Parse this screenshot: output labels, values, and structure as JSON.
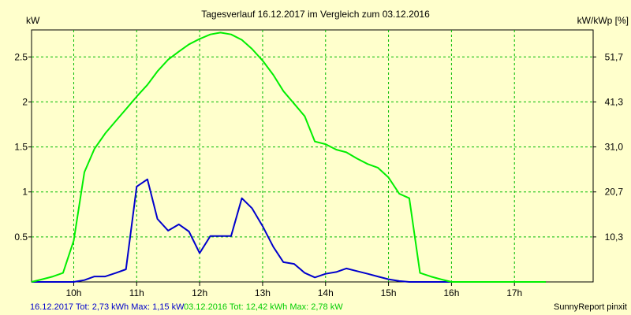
{
  "chart_data": {
    "type": "line",
    "title": "Tagesverlauf 16.12.2017 im Vergleich zum 03.12.2016",
    "ylabel_left": "kW",
    "ylabel_right": "kW/kWp [%]",
    "x_ticks": [
      "10h",
      "11h",
      "12h",
      "13h",
      "14h",
      "15h",
      "16h",
      "17h"
    ],
    "x_tick_hours": [
      10,
      11,
      12,
      13,
      14,
      15,
      16,
      17
    ],
    "xlim": [
      9.33,
      18.25
    ],
    "ylim": [
      0,
      2.8
    ],
    "y_ticks": [
      0.5,
      1,
      1.5,
      2,
      2.5
    ],
    "y_tick_labels": [
      "0.5",
      "1",
      "1.5",
      "2",
      "2.5"
    ],
    "y2_ticks": [
      0.5,
      1,
      1.5,
      2,
      2.5
    ],
    "y2_tick_labels": [
      "10,3",
      "20,7",
      "31,0",
      "41,3",
      "51,7"
    ],
    "grid": true,
    "series": [
      {
        "name": "16.12.2017",
        "color": "#0000cc",
        "x": [
          9.33,
          9.5,
          9.67,
          9.83,
          10.0,
          10.17,
          10.33,
          10.5,
          10.67,
          10.83,
          11.0,
          11.17,
          11.33,
          11.5,
          11.67,
          11.83,
          12.0,
          12.17,
          12.33,
          12.5,
          12.67,
          12.83,
          13.0,
          13.17,
          13.33,
          13.5,
          13.67,
          13.83,
          14.0,
          14.17,
          14.33,
          14.5,
          14.67,
          14.83,
          15.0,
          15.17,
          15.33,
          15.5,
          15.67,
          15.83,
          16.0,
          16.17,
          16.33,
          16.5,
          16.67,
          16.83,
          17.0,
          17.17,
          17.33,
          17.5
        ],
        "values": [
          0,
          0,
          0,
          0,
          0,
          0.02,
          0.06,
          0.06,
          0.1,
          0.14,
          1.06,
          1.14,
          0.7,
          0.57,
          0.64,
          0.56,
          0.32,
          0.51,
          0.51,
          0.51,
          0.93,
          0.82,
          0.62,
          0.39,
          0.22,
          0.2,
          0.1,
          0.05,
          0.09,
          0.11,
          0.15,
          0.12,
          0.09,
          0.06,
          0.03,
          0.01,
          0,
          0,
          0,
          0,
          0,
          0,
          0,
          0,
          0,
          0,
          0,
          0,
          0,
          0
        ]
      },
      {
        "name": "03.12.2016",
        "color": "#00ee00",
        "x": [
          9.33,
          9.5,
          9.67,
          9.83,
          10.0,
          10.17,
          10.33,
          10.5,
          10.67,
          10.83,
          11.0,
          11.17,
          11.33,
          11.5,
          11.67,
          11.83,
          12.0,
          12.17,
          12.33,
          12.5,
          12.67,
          12.83,
          13.0,
          13.17,
          13.33,
          13.5,
          13.67,
          13.83,
          14.0,
          14.17,
          14.33,
          14.5,
          14.67,
          14.83,
          15.0,
          15.17,
          15.33,
          15.5,
          15.67,
          15.83,
          16.0,
          16.17,
          16.33,
          16.5,
          16.67,
          16.83,
          17.0,
          17.17,
          17.33,
          17.5
        ],
        "values": [
          0,
          0.03,
          0.06,
          0.1,
          0.46,
          1.22,
          1.48,
          1.65,
          1.79,
          1.92,
          2.06,
          2.19,
          2.34,
          2.47,
          2.56,
          2.64,
          2.7,
          2.75,
          2.77,
          2.75,
          2.69,
          2.59,
          2.46,
          2.3,
          2.12,
          1.98,
          1.84,
          1.56,
          1.53,
          1.47,
          1.44,
          1.37,
          1.31,
          1.27,
          1.16,
          0.98,
          0.93,
          0.1,
          0.06,
          0.03,
          0,
          0,
          0,
          0,
          0,
          0,
          0,
          0,
          0,
          0
        ]
      }
    ]
  },
  "footer": {
    "series1": "16.12.2017 Tot: 2,73 kWh Max: 1,15 kW",
    "series2": "03.12.2016 Tot: 12,42 kWh Max: 2,78 kW",
    "credit": "SunnyReport pinxit"
  }
}
